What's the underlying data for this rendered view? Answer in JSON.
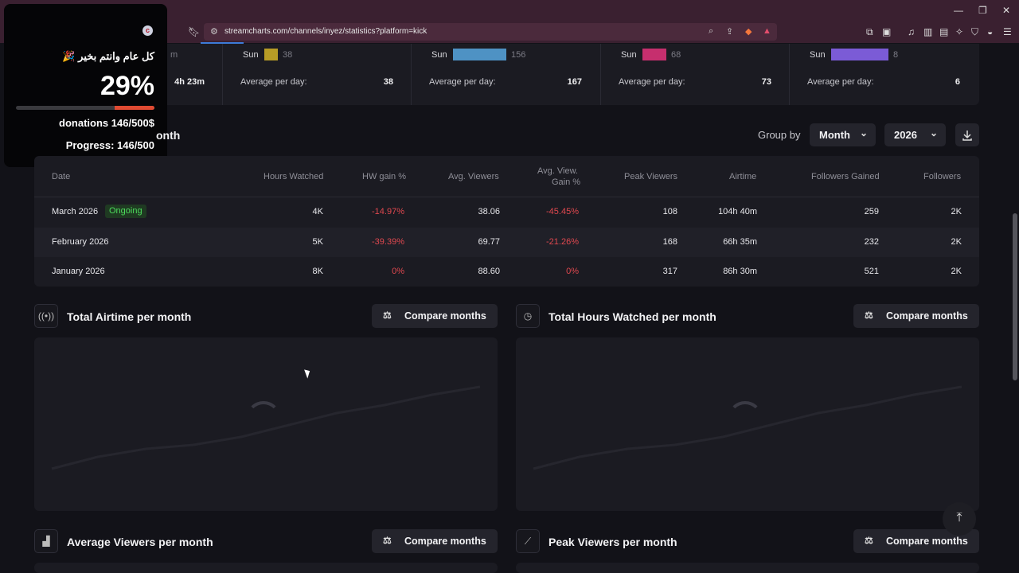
{
  "browser": {
    "url": "streamcharts.com/channels/inyez/statistics?platform=kick"
  },
  "weekdays": [
    {
      "day": "Sun",
      "value": "38",
      "avg_label": "Average per day:",
      "avg": "38",
      "color": "#b79c26",
      "fill": 0.24
    },
    {
      "day": "Sun",
      "value": "156",
      "avg_label": "Average per day:",
      "avg": "167",
      "color": "#4e92c4",
      "fill": 0.93
    },
    {
      "day": "Sun",
      "value": "68",
      "avg_label": "Average per day:",
      "avg": "73",
      "color": "#c62f6e",
      "fill": 0.41
    },
    {
      "day": "Sun",
      "value": "8",
      "avg_label": "Average per day:",
      "avg": "6",
      "color": "#7b5bd6",
      "fill": 1.0
    }
  ],
  "first_col": {
    "partial": "m",
    "value": "4h 23m"
  },
  "section": {
    "title": "onth",
    "group_by_label": "Group by",
    "group_value": "Month",
    "year_value": "2026"
  },
  "table": {
    "headers": [
      "Date",
      "Hours Watched",
      "HW gain %",
      "Avg. Viewers",
      "Avg. View.",
      "Gain %",
      "Peak Viewers",
      "Airtime",
      "Followers Gained",
      "Followers"
    ],
    "rows": [
      {
        "date": "March 2026",
        "badge": "Ongoing",
        "hours": "4K",
        "hw_gain": "-14.97%",
        "avg_viewers": "38.06",
        "avg_gain": "-45.45%",
        "peak": "108",
        "airtime": "104h 40m",
        "fgained": "259",
        "followers": "2K"
      },
      {
        "date": "February 2026",
        "badge": "",
        "hours": "5K",
        "hw_gain": "-39.39%",
        "avg_viewers": "69.77",
        "avg_gain": "-21.26%",
        "peak": "168",
        "airtime": "66h 35m",
        "fgained": "232",
        "followers": "2K"
      },
      {
        "date": "January 2026",
        "badge": "",
        "hours": "8K",
        "hw_gain": "0%",
        "avg_viewers": "88.60",
        "avg_gain": "0%",
        "peak": "317",
        "airtime": "86h 30m",
        "fgained": "521",
        "followers": "2K"
      }
    ]
  },
  "cards": {
    "airtime_title": "Total Airtime per month",
    "hours_title": "Total Hours Watched per month",
    "avg_title": "Average Viewers per month",
    "peak_title": "Peak Viewers per month",
    "compare_label": "Compare months"
  },
  "overlay": {
    "greeting": "كل عام وانتم بخير 🎉",
    "percent": "29%",
    "progress": 0.29,
    "donations": "donations 146/500$",
    "progress_text": "Progress: 146/500",
    "logo": "c"
  }
}
